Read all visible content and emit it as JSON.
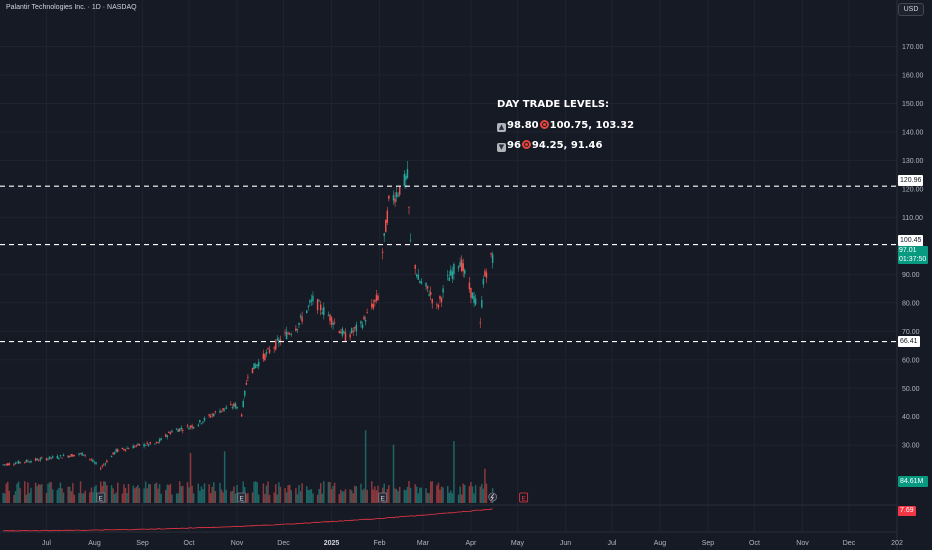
{
  "header": {
    "symbol_title": "Palantir Technologies Inc. · 1D · NASDAQ",
    "currency": "USD"
  },
  "annotation": {
    "title": "DAY TRADE LEVELS:",
    "up_level": "98.80",
    "up_targets": "100.75, 103.32",
    "down_level": "96",
    "down_targets": "94.25, 91.46"
  },
  "levels": [
    {
      "label": "120.96",
      "value": 120.96
    },
    {
      "label": "100.45",
      "value": 100.45
    },
    {
      "label": "66.41",
      "value": 66.41
    }
  ],
  "last_price": {
    "price": "97.01",
    "countdown": "01:37:50"
  },
  "volume_last": "84.61M",
  "indicator_last": "7.69",
  "colors": {
    "background": "#161a25",
    "up": "#26a69a",
    "down": "#ef5350",
    "grid": "#1f2330",
    "indicator": "#f23645"
  },
  "chart_data": {
    "type": "candlestick",
    "y_ticks": [
      "170.00",
      "160.00",
      "150.00",
      "140.00",
      "130.00",
      "120.00",
      "110.00",
      "100.00",
      "90.00",
      "80.00",
      "70.00",
      "60.00",
      "50.00",
      "40.00",
      "30.00"
    ],
    "y_range": [
      22,
      180
    ],
    "x_ticks": [
      "Jul",
      "Aug",
      "Sep",
      "Oct",
      "Nov",
      "Dec",
      "2025",
      "Feb",
      "Mar",
      "Apr",
      "May",
      "Jun",
      "Jul",
      "Aug",
      "Sep",
      "Oct",
      "Nov",
      "Dec",
      "202"
    ],
    "markers": [
      "E",
      "E",
      "E",
      "E"
    ],
    "price_path": [
      [
        "2024-06-01",
        23
      ],
      [
        "2024-06-20",
        24.5
      ],
      [
        "2024-07-10",
        26
      ],
      [
        "2024-07-25",
        27
      ],
      [
        "2024-08-05",
        22
      ],
      [
        "2024-08-15",
        28
      ],
      [
        "2024-08-30",
        30
      ],
      [
        "2024-09-10",
        30.5
      ],
      [
        "2024-09-20",
        35
      ],
      [
        "2024-10-05",
        37
      ],
      [
        "2024-10-20",
        42
      ],
      [
        "2024-10-31",
        44
      ],
      [
        "2024-11-04",
        41
      ],
      [
        "2024-11-08",
        55
      ],
      [
        "2024-11-20",
        62
      ],
      [
        "2024-12-01",
        68
      ],
      [
        "2024-12-10",
        72
      ],
      [
        "2024-12-20",
        81
      ],
      [
        "2024-12-31",
        75
      ],
      [
        "2025-01-10",
        68
      ],
      [
        "2025-01-20",
        72
      ],
      [
        "2025-01-31",
        82
      ],
      [
        "2025-02-03",
        98
      ],
      [
        "2025-02-07",
        115
      ],
      [
        "2025-02-14",
        120
      ],
      [
        "2025-02-19",
        124
      ],
      [
        "2025-02-21",
        101
      ],
      [
        "2025-02-26",
        88
      ],
      [
        "2025-03-05",
        84
      ],
      [
        "2025-03-10",
        78
      ],
      [
        "2025-03-17",
        88
      ],
      [
        "2025-03-25",
        95
      ],
      [
        "2025-03-31",
        85
      ],
      [
        "2025-04-04",
        80
      ],
      [
        "2025-04-07",
        72
      ],
      [
        "2025-04-09",
        88
      ],
      [
        "2025-04-15",
        97
      ]
    ]
  }
}
